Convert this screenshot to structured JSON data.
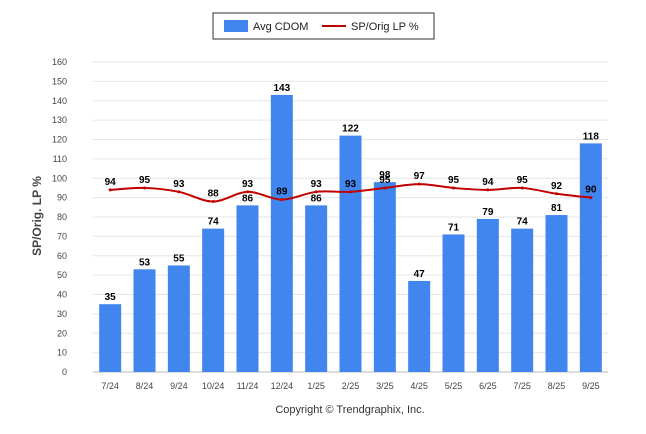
{
  "chart_data": {
    "type": "bar",
    "categories": [
      "7/24",
      "8/24",
      "9/24",
      "10/24",
      "11/24",
      "12/24",
      "1/25",
      "2/25",
      "3/25",
      "4/25",
      "5/25",
      "6/25",
      "7/25",
      "8/25",
      "9/25"
    ],
    "series": [
      {
        "name": "Avg CDOM",
        "type": "bar",
        "color": "#4185ee",
        "values": [
          35,
          53,
          55,
          74,
          86,
          143,
          86,
          122,
          98,
          47,
          71,
          79,
          74,
          81,
          118
        ]
      },
      {
        "name": "SP/Orig LP %",
        "type": "line",
        "color": "#c00000",
        "values": [
          94,
          95,
          93,
          88,
          93,
          89,
          93,
          93,
          95,
          97,
          95,
          94,
          95,
          92,
          90
        ]
      }
    ],
    "ylabel": "SP/Orig. LP %",
    "ylim": [
      0,
      160
    ],
    "yticks": [
      0,
      10,
      20,
      30,
      40,
      50,
      60,
      70,
      80,
      90,
      100,
      110,
      120,
      130,
      140,
      150,
      160
    ],
    "grid": true,
    "legend": "top-center"
  },
  "footer": {
    "copyright": "Copyright © Trendgraphix, Inc."
  }
}
